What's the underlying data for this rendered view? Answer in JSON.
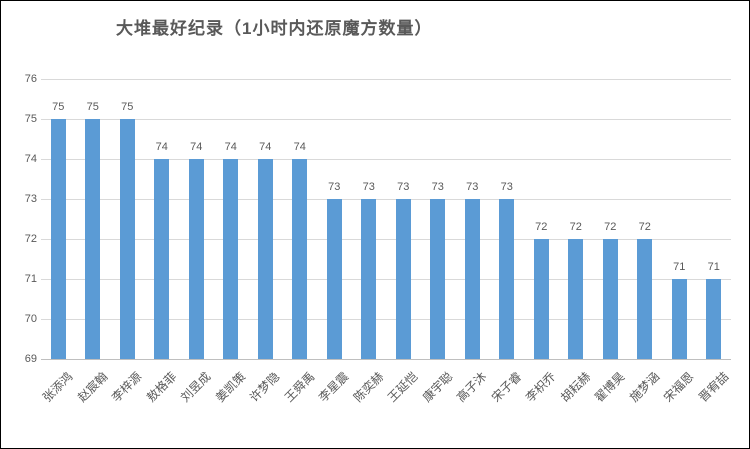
{
  "chart": {
    "title": "大堆最好纪录（1小时内还原魔方数量）"
  },
  "colors": {
    "bar_fill": "#5b9bd5",
    "gridline": "#d9d9d9",
    "axis_line": "#bfbfbf",
    "text": "#595959"
  },
  "chart_data": {
    "type": "bar",
    "title": "大堆最好纪录（1小时内还原魔方数量）",
    "categories": [
      "张添鸿",
      "赵宸翰",
      "李梓源",
      "敖格菲",
      "刘昱成",
      "姜凯策",
      "许梦隐",
      "王舜禹",
      "李星震",
      "陈奕赫",
      "王延恺",
      "康宇聪",
      "高子沐",
      "宋子睿",
      "李枳乔",
      "胡耘赫",
      "翟博昊",
      "施梦涵",
      "宋福恩",
      "晋宥喆"
    ],
    "values": [
      75,
      75,
      75,
      74,
      74,
      74,
      74,
      74,
      73,
      73,
      73,
      73,
      73,
      73,
      72,
      72,
      72,
      72,
      71,
      71
    ],
    "data_labels_shown": true,
    "xlabel": "",
    "ylabel": "",
    "ylim": [
      69,
      76
    ],
    "yticks": [
      69,
      70,
      71,
      72,
      73,
      74,
      75,
      76
    ],
    "grid": "horizontal",
    "legend": "none"
  }
}
